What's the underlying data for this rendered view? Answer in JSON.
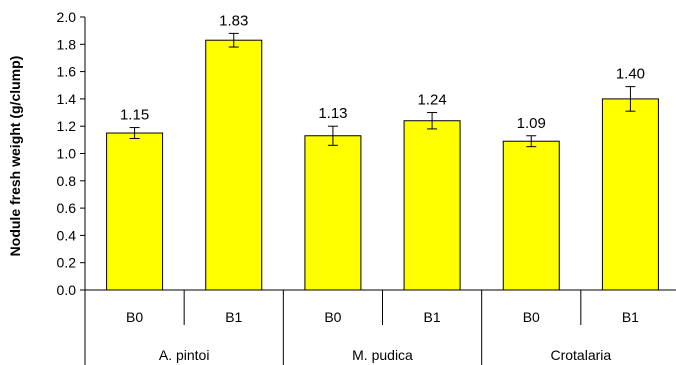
{
  "chart_data": {
    "type": "bar",
    "title": "",
    "xlabel": "",
    "ylabel": "Nodule fresh weight (g/clump)",
    "ylim": [
      0,
      2.0
    ],
    "yticks": [
      "0.0",
      "0.2",
      "0.4",
      "0.6",
      "0.8",
      "1.0",
      "1.2",
      "1.4",
      "1.6",
      "1.8",
      "2.0"
    ],
    "groups": [
      {
        "label": "A. pintoi",
        "categories": [
          "B0",
          "B1"
        ]
      },
      {
        "label": "M. pudica",
        "categories": [
          "B0",
          "B1"
        ]
      },
      {
        "label": "Crotalaria",
        "categories": [
          "B0",
          "B1"
        ]
      }
    ],
    "categories": [
      "B0",
      "B1",
      "B0",
      "B1",
      "B0",
      "B1"
    ],
    "values": [
      1.15,
      1.83,
      1.13,
      1.24,
      1.09,
      1.4
    ],
    "value_labels": [
      "1.15",
      "1.83",
      "1.13",
      "1.24",
      "1.09",
      "1.40"
    ],
    "errors": [
      0.04,
      0.05,
      0.07,
      0.06,
      0.04,
      0.09
    ],
    "bar_color": "#ffff00",
    "bar_edge_color": "#000000",
    "grid": false,
    "legend": "none"
  }
}
